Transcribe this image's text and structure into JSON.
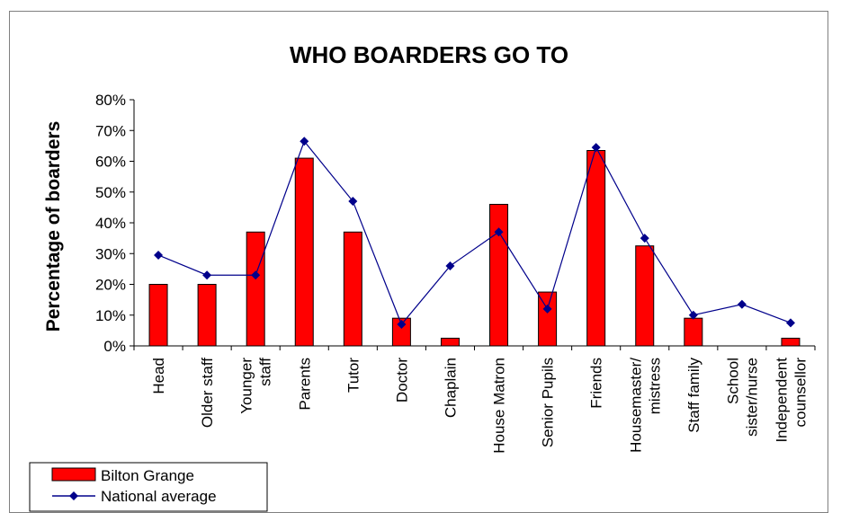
{
  "chart_data": {
    "type": "bar",
    "title": "WHO BOARDERS GO TO",
    "xlabel": "",
    "ylabel": "Percentage of boarders",
    "ylim": [
      0,
      0.8
    ],
    "yticks": [
      "0%",
      "10%",
      "20%",
      "30%",
      "40%",
      "50%",
      "60%",
      "70%",
      "80%"
    ],
    "yticks_values": [
      0,
      0.1,
      0.2,
      0.3,
      0.4,
      0.5,
      0.6,
      0.7,
      0.8
    ],
    "grid": false,
    "legend_position": "bottom-left",
    "categories": [
      [
        "Head"
      ],
      [
        "Older staff"
      ],
      [
        "Younger",
        "staff"
      ],
      [
        "Parents"
      ],
      [
        "Tutor"
      ],
      [
        "Doctor"
      ],
      [
        "Chaplain"
      ],
      [
        "House Matron"
      ],
      [
        "Senior Pupils"
      ],
      [
        "Friends"
      ],
      [
        "Housemaster/",
        "mistress"
      ],
      [
        "Staff family"
      ],
      [
        "School",
        "sister/nurse"
      ],
      [
        "Independent",
        "counsellor"
      ]
    ],
    "series": [
      {
        "name": "Bilton Grange",
        "kind": "bar",
        "color": "#ff0000",
        "values": [
          0.2,
          0.2,
          0.37,
          0.61,
          0.37,
          0.09,
          0.025,
          0.46,
          0.175,
          0.635,
          0.325,
          0.09,
          0.0,
          0.025
        ]
      },
      {
        "name": "National average",
        "kind": "line",
        "color": "#00008b",
        "values": [
          0.295,
          0.23,
          0.23,
          0.665,
          0.47,
          0.07,
          0.26,
          0.37,
          0.12,
          0.645,
          0.35,
          0.1,
          0.135,
          0.075
        ]
      }
    ]
  }
}
